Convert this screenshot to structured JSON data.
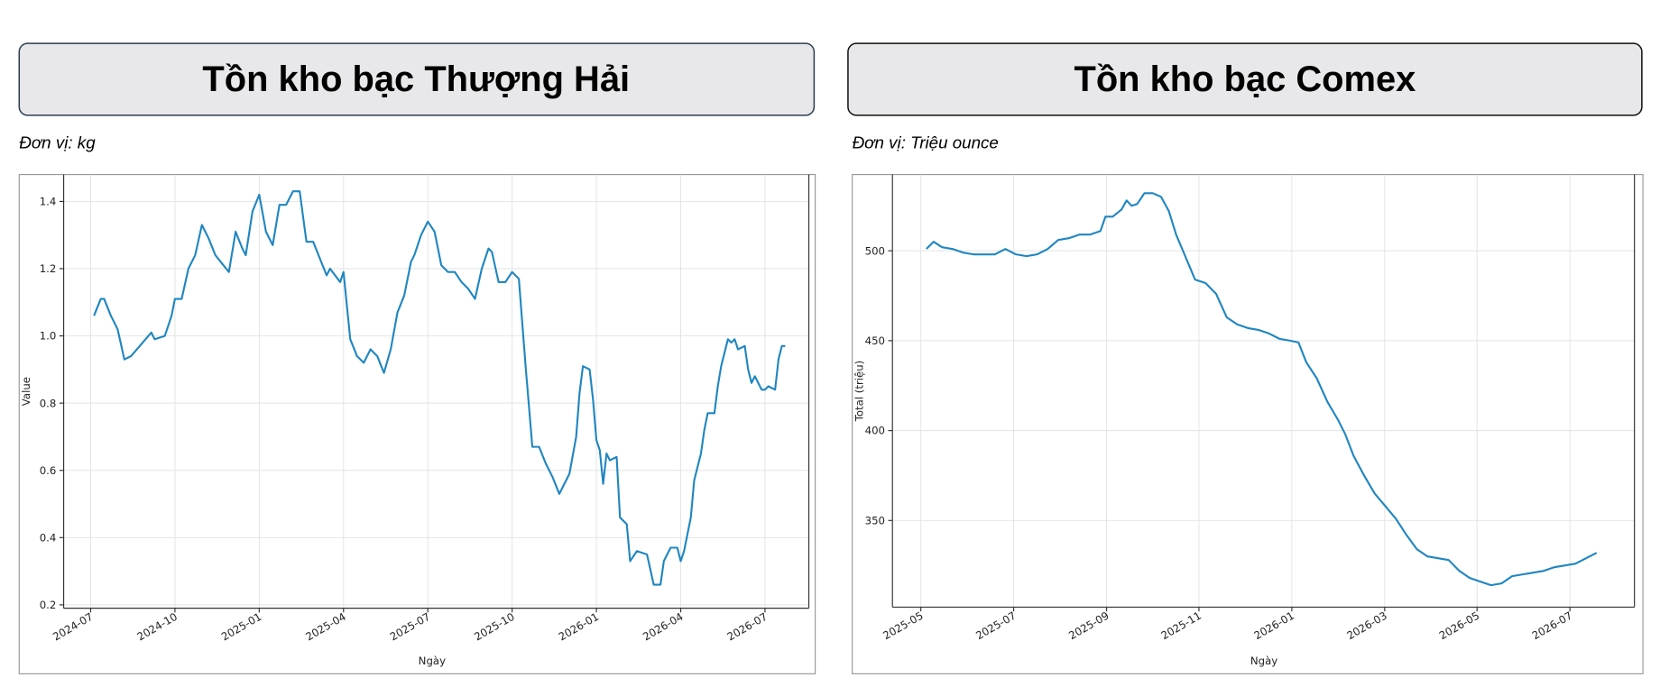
{
  "chart_data": [
    {
      "type": "line",
      "title": "Tồn kho bạc Thượng Hải",
      "subtitle": "Đơn vị: kg",
      "x_label": "Ngày",
      "y_label": "Value",
      "color": "#1f86c0",
      "grid": true,
      "xlim": [
        2024.42,
        2026.63
      ],
      "ylim": [
        0.19,
        1.48
      ],
      "xticks": [
        {
          "value": 2024.5,
          "label": "2024-07"
        },
        {
          "value": 2024.75,
          "label": "2024-10"
        },
        {
          "value": 2025.0,
          "label": "2025-01"
        },
        {
          "value": 2025.25,
          "label": "2025-04"
        },
        {
          "value": 2025.5,
          "label": "2025-07"
        },
        {
          "value": 2025.75,
          "label": "2025-10"
        },
        {
          "value": 2026.0,
          "label": "2026-01"
        },
        {
          "value": 2026.25,
          "label": "2026-04"
        },
        {
          "value": 2026.5,
          "label": "2026-07"
        }
      ],
      "yticks": [
        0.2,
        0.4,
        0.6,
        0.8,
        {
          "value": 1,
          "label": "1.0"
        },
        1.2,
        1.4
      ],
      "x": [
        2024.51,
        2024.53,
        2024.54,
        2024.56,
        2024.58,
        2024.6,
        2024.62,
        2024.68,
        2024.69,
        2024.72,
        2024.74,
        2024.75,
        2024.77,
        2024.79,
        2024.81,
        2024.83,
        2024.85,
        2024.87,
        2024.91,
        2024.93,
        2024.95,
        2024.96,
        2024.98,
        2025.0,
        2025.02,
        2025.04,
        2025.06,
        2025.08,
        2025.1,
        2025.12,
        2025.14,
        2025.16,
        2025.2,
        2025.21,
        2025.24,
        2025.25,
        2025.27,
        2025.29,
        2025.31,
        2025.33,
        2025.35,
        2025.37,
        2025.39,
        2025.41,
        2025.43,
        2025.45,
        2025.46,
        2025.48,
        2025.5,
        2025.52,
        2025.54,
        2025.56,
        2025.58,
        2025.6,
        2025.62,
        2025.64,
        2025.66,
        2025.68,
        2025.69,
        2025.71,
        2025.73,
        2025.75,
        2025.77,
        2025.79,
        2025.81,
        2025.83,
        2025.85,
        2025.87,
        2025.89,
        2025.9,
        2025.92,
        2025.94,
        2025.95,
        2025.96,
        2025.98,
        2025.99,
        2026.0,
        2026.01,
        2026.02,
        2026.03,
        2026.04,
        2026.06,
        2026.07,
        2026.09,
        2026.1,
        2026.12,
        2026.15,
        2026.17,
        2026.19,
        2026.2,
        2026.22,
        2026.24,
        2026.25,
        2026.26,
        2026.28,
        2026.29,
        2026.31,
        2026.32,
        2026.33,
        2026.35,
        2026.36,
        2026.37,
        2026.39,
        2026.4,
        2026.41,
        2026.42,
        2026.44,
        2026.45,
        2026.46,
        2026.47,
        2026.49,
        2026.5,
        2026.51,
        2026.53,
        2026.54,
        2026.55,
        2026.56
      ],
      "values": [
        1.06,
        1.11,
        1.11,
        1.06,
        1.02,
        0.93,
        0.94,
        1.01,
        0.99,
        1.0,
        1.06,
        1.11,
        1.11,
        1.2,
        1.24,
        1.33,
        1.29,
        1.24,
        1.19,
        1.31,
        1.26,
        1.24,
        1.37,
        1.42,
        1.31,
        1.27,
        1.39,
        1.39,
        1.43,
        1.43,
        1.28,
        1.28,
        1.18,
        1.2,
        1.16,
        1.19,
        0.99,
        0.94,
        0.92,
        0.96,
        0.94,
        0.89,
        0.96,
        1.07,
        1.12,
        1.22,
        1.24,
        1.3,
        1.34,
        1.31,
        1.21,
        1.19,
        1.19,
        1.16,
        1.14,
        1.11,
        1.2,
        1.26,
        1.25,
        1.16,
        1.16,
        1.19,
        1.17,
        0.91,
        0.67,
        0.67,
        0.62,
        0.58,
        0.53,
        0.55,
        0.59,
        0.7,
        0.83,
        0.91,
        0.9,
        0.81,
        0.69,
        0.66,
        0.56,
        0.65,
        0.63,
        0.64,
        0.46,
        0.44,
        0.33,
        0.36,
        0.35,
        0.26,
        0.26,
        0.33,
        0.37,
        0.37,
        0.33,
        0.36,
        0.46,
        0.57,
        0.65,
        0.72,
        0.77,
        0.77,
        0.85,
        0.91,
        0.99,
        0.98,
        0.99,
        0.96,
        0.97,
        0.9,
        0.86,
        0.88,
        0.84,
        0.84,
        0.85,
        0.84,
        0.93,
        0.97,
        0.97
      ]
    },
    {
      "type": "line",
      "title": "Tồn kho bạc Comex",
      "subtitle": "Đơn vị: Triệu ounce",
      "x_label": "Ngày",
      "y_label": "Total (triệu)",
      "color": "#1f86c0",
      "grid": true,
      "xlim": [
        2025.282,
        2026.616
      ],
      "ylim": [
        301.8,
        542.4
      ],
      "xticks": [
        {
          "value": 2025.333,
          "label": "2025-05"
        },
        {
          "value": 2025.5,
          "label": "2025-07"
        },
        {
          "value": 2025.667,
          "label": "2025-09"
        },
        {
          "value": 2025.833,
          "label": "2025-11"
        },
        {
          "value": 2026.0,
          "label": "2026-01"
        },
        {
          "value": 2026.167,
          "label": "2026-03"
        },
        {
          "value": 2026.333,
          "label": "2026-05"
        },
        {
          "value": 2026.5,
          "label": "2026-07"
        }
      ],
      "yticks": [
        350,
        400,
        450,
        500
      ],
      "x": [
        2025.343,
        2025.356,
        2025.371,
        2025.39,
        2025.409,
        2025.428,
        2025.447,
        2025.466,
        2025.485,
        2025.504,
        2025.523,
        2025.542,
        2025.561,
        2025.58,
        2025.599,
        2025.618,
        2025.637,
        2025.656,
        2025.665,
        2025.678,
        2025.694,
        2025.703,
        2025.712,
        2025.722,
        2025.735,
        2025.75,
        2025.765,
        2025.779,
        2025.792,
        2025.807,
        2025.826,
        2025.845,
        2025.864,
        2025.883,
        2025.902,
        2025.921,
        2025.94,
        2025.959,
        2025.978,
        2025.997,
        2026.012,
        2026.026,
        2026.045,
        2026.064,
        2026.083,
        2026.096,
        2026.111,
        2026.13,
        2026.149,
        2026.168,
        2026.187,
        2026.206,
        2026.225,
        2026.244,
        2026.263,
        2026.282,
        2026.301,
        2026.32,
        2026.339,
        2026.358,
        2026.377,
        2026.396,
        2026.415,
        2026.434,
        2026.453,
        2026.472,
        2026.491,
        2026.51,
        2026.529,
        2026.548
      ],
      "values": [
        501,
        505,
        502,
        501,
        499,
        498,
        498,
        498,
        501,
        498,
        497,
        498,
        501,
        506,
        507,
        509,
        509,
        511,
        519,
        519,
        523,
        528,
        525,
        526,
        532,
        532,
        530,
        522,
        509,
        498,
        484,
        482,
        476,
        463,
        459,
        457,
        456,
        454,
        451,
        450,
        449,
        438,
        429,
        416,
        406,
        398,
        386,
        375,
        365,
        358,
        351,
        342,
        334,
        330,
        329,
        328,
        322,
        318,
        316,
        314,
        315,
        319,
        320,
        321,
        322,
        324,
        325,
        326,
        329,
        332
      ]
    }
  ]
}
